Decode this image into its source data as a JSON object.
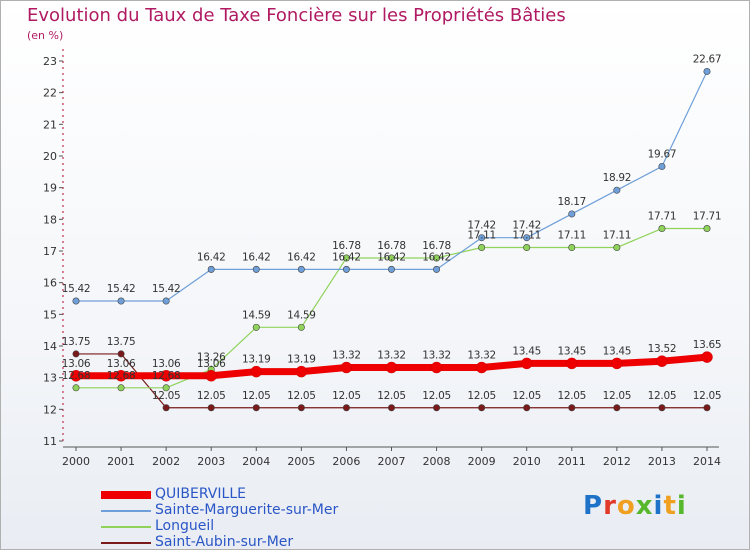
{
  "title": "Evolution du Taux de Taxe Foncière sur les Propriétés Bâties",
  "unit": "(en %)",
  "logo": {
    "text": "Proxiti",
    "colors": [
      "#1e73c8",
      "#e23a2a",
      "#f0a020",
      "#57b82e",
      "#1e73c8",
      "#f0a020",
      "#57b82e"
    ]
  },
  "chart_data": {
    "type": "line",
    "x": [
      "2000",
      "2001",
      "2002",
      "2003",
      "2004",
      "2005",
      "2006",
      "2007",
      "2008",
      "2009",
      "2010",
      "2011",
      "2012",
      "2013",
      "2014"
    ],
    "yticks": [
      "11",
      "12",
      "13",
      "14",
      "15",
      "16",
      "17",
      "18",
      "19",
      "20",
      "21",
      "22",
      "23"
    ],
    "ylim": [
      11,
      23
    ],
    "grid": false,
    "legend": "bottom-left",
    "series": [
      {
        "name": "Saint-Aubin-sur-Mer",
        "color": "#7a1a1a",
        "width": 1.2,
        "values": [
          13.75,
          13.75,
          12.05,
          12.05,
          12.05,
          12.05,
          12.05,
          12.05,
          12.05,
          12.05,
          12.05,
          12.05,
          12.05,
          12.05,
          12.05
        ],
        "labels": [
          "13.75",
          "13.75",
          "12.05",
          "12.05",
          "12.05",
          "12.05",
          "12.05",
          "12.05",
          "12.05",
          "12.05",
          "12.05",
          "12.05",
          "12.05",
          "12.05",
          "12.05"
        ]
      },
      {
        "name": "Longueil",
        "color": "#8fd35a",
        "width": 1.2,
        "values": [
          12.68,
          12.68,
          12.68,
          13.26,
          14.59,
          14.59,
          16.78,
          16.78,
          16.78,
          17.11,
          17.11,
          17.11,
          17.11,
          17.71,
          17.71
        ],
        "labels": [
          "12.68",
          "12.68",
          "12.68",
          "13.26",
          "14.59",
          "14.59",
          "16.78",
          "16.78",
          "16.78",
          "17.11",
          "17.11",
          "17.11",
          "17.11",
          "17.71",
          "17.71"
        ]
      },
      {
        "name": "Sainte-Marguerite-sur-Mer",
        "color": "#6f9fd8",
        "width": 1.2,
        "values": [
          15.42,
          15.42,
          15.42,
          16.42,
          16.42,
          16.42,
          16.42,
          16.42,
          16.42,
          17.42,
          17.42,
          18.17,
          18.92,
          19.67,
          22.67
        ],
        "labels": [
          "15.42",
          "15.42",
          "15.42",
          "16.42",
          "16.42",
          "16.42",
          "16.42",
          "16.42",
          "16.42",
          "17.42",
          "17.42",
          "18.17",
          "18.92",
          "19.67",
          "22.67"
        ]
      },
      {
        "name": "QUIBERVILLE",
        "color": "#ee0000",
        "width": 7,
        "values": [
          13.06,
          13.06,
          13.06,
          13.06,
          13.19,
          13.19,
          13.32,
          13.32,
          13.32,
          13.32,
          13.45,
          13.45,
          13.45,
          13.52,
          13.65
        ],
        "labels": [
          "13.06",
          "13.06",
          "13.06",
          "13.06",
          "13.19",
          "13.19",
          "13.32",
          "13.32",
          "13.32",
          "13.32",
          "13.45",
          "13.45",
          "13.45",
          "13.52",
          "13.65"
        ]
      }
    ],
    "legend_order": [
      "QUIBERVILLE",
      "Sainte-Marguerite-sur-Mer",
      "Longueil",
      "Saint-Aubin-sur-Mer"
    ]
  }
}
